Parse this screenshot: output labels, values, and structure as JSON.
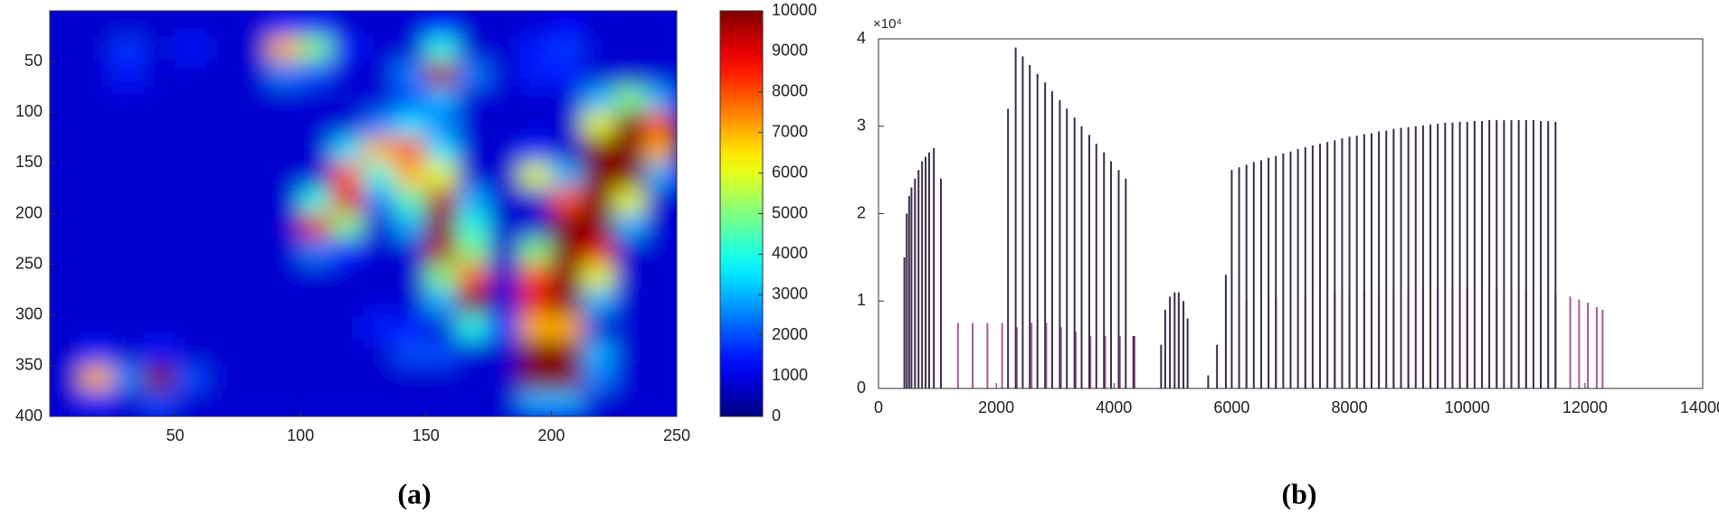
{
  "chart_data": [
    {
      "type": "heatmap",
      "label": "(a)",
      "colormap": "jet",
      "xlim": [
        0,
        250
      ],
      "ylim": [
        400,
        0
      ],
      "xticks": [
        50,
        100,
        150,
        200,
        250
      ],
      "yticks": [
        50,
        100,
        150,
        200,
        250,
        300,
        350,
        400
      ],
      "clim": [
        0,
        10000
      ],
      "cticks": [
        0,
        1000,
        2000,
        3000,
        4000,
        5000,
        6000,
        7000,
        8000,
        9000,
        10000
      ],
      "z": [
        [
          800,
          800,
          800,
          800,
          800,
          800,
          800,
          1500,
          1500,
          800,
          800,
          800,
          1500,
          800,
          800,
          800,
          1200,
          800,
          800,
          800
        ],
        [
          800,
          800,
          1800,
          800,
          1500,
          800,
          800,
          7000,
          5000,
          1500,
          800,
          800,
          4000,
          800,
          800,
          1500,
          1800,
          800,
          800,
          800
        ],
        [
          800,
          800,
          1500,
          800,
          800,
          800,
          800,
          2500,
          2000,
          800,
          800,
          2500,
          9500,
          2500,
          800,
          1500,
          1500,
          800,
          800,
          800
        ],
        [
          800,
          800,
          800,
          800,
          800,
          800,
          800,
          800,
          800,
          800,
          800,
          2000,
          3000,
          800,
          800,
          800,
          800,
          3000,
          5000,
          3000
        ],
        [
          800,
          800,
          800,
          800,
          800,
          800,
          800,
          800,
          800,
          800,
          2500,
          3500,
          2500,
          800,
          800,
          800,
          800,
          6000,
          10000,
          8000
        ],
        [
          800,
          800,
          800,
          800,
          800,
          800,
          800,
          800,
          800,
          3500,
          7000,
          8000,
          3500,
          800,
          800,
          1500,
          800,
          10000,
          10000,
          7000
        ],
        [
          800,
          800,
          800,
          800,
          800,
          800,
          800,
          800,
          800,
          8000,
          4000,
          7000,
          6000,
          800,
          800,
          6000,
          3000,
          10000,
          10000,
          3000
        ],
        [
          800,
          800,
          800,
          800,
          800,
          800,
          800,
          800,
          4000,
          9000,
          2500,
          4500,
          9500,
          3000,
          800,
          800,
          8000,
          10000,
          6000,
          800
        ],
        [
          800,
          800,
          800,
          800,
          800,
          800,
          800,
          800,
          9000,
          5000,
          800,
          3000,
          10000,
          4000,
          800,
          800,
          10000,
          10000,
          3000,
          800
        ],
        [
          800,
          800,
          800,
          800,
          800,
          800,
          800,
          800,
          2500,
          1500,
          800,
          800,
          9500,
          5000,
          800,
          5000,
          10000,
          9000,
          800,
          800
        ],
        [
          800,
          800,
          800,
          800,
          800,
          800,
          800,
          800,
          800,
          800,
          800,
          800,
          5000,
          8000,
          800,
          8000,
          10000,
          6000,
          800,
          800
        ],
        [
          800,
          800,
          800,
          800,
          800,
          800,
          800,
          800,
          800,
          800,
          800,
          800,
          3000,
          10000,
          800,
          9000,
          10000,
          3000,
          800,
          800
        ],
        [
          800,
          800,
          800,
          800,
          800,
          800,
          800,
          800,
          800,
          800,
          1500,
          1500,
          800,
          4000,
          1500,
          7000,
          7000,
          800,
          800,
          800
        ],
        [
          800,
          1500,
          800,
          1500,
          800,
          800,
          800,
          800,
          800,
          800,
          800,
          2000,
          2000,
          800,
          800,
          10000,
          10000,
          3000,
          800,
          800
        ],
        [
          800,
          7000,
          2500,
          10000,
          2000,
          800,
          800,
          800,
          800,
          800,
          800,
          800,
          800,
          800,
          800,
          10000,
          10000,
          2500,
          800,
          800
        ],
        [
          800,
          1500,
          800,
          2000,
          800,
          800,
          800,
          800,
          800,
          800,
          800,
          800,
          800,
          800,
          800,
          3000,
          3000,
          800,
          800,
          800
        ]
      ]
    },
    {
      "type": "stem",
      "label": "(b)",
      "y_exponent": "×10⁴",
      "xlim": [
        0,
        14000
      ],
      "ylim": [
        0,
        40000
      ],
      "xticks": [
        0,
        2000,
        4000,
        6000,
        8000,
        10000,
        12000,
        14000
      ],
      "yticks": [
        {
          "value": 0,
          "label": "0"
        },
        {
          "value": 10000,
          "label": "1"
        },
        {
          "value": 20000,
          "label": "2"
        },
        {
          "value": 30000,
          "label": "3"
        },
        {
          "value": 40000,
          "label": "4"
        }
      ],
      "series": [
        {
          "color": "#a45a9c",
          "x": [
            1350,
            1600,
            1850,
            2100,
            2350,
            2600,
            2850,
            3100,
            3350,
            3600,
            3850,
            4100,
            4350,
            6250,
            6500,
            6750,
            7000,
            7250,
            7500,
            7750,
            8000,
            8250,
            8500,
            8750,
            9000,
            9250,
            9500,
            9750,
            10000,
            10250,
            10500,
            10750,
            11000,
            11250,
            11500,
            11750,
            11900,
            12050,
            12200,
            12300
          ],
          "values": [
            7500,
            7500,
            7500,
            7500,
            7000,
            7500,
            7500,
            7000,
            6500,
            6000,
            6000,
            6000,
            6000,
            10000,
            10200,
            10400,
            10500,
            10700,
            10800,
            11000,
            11100,
            11200,
            11300,
            11400,
            11400,
            11500,
            11500,
            11500,
            11500,
            11500,
            11400,
            11300,
            11200,
            11000,
            10800,
            10500,
            10200,
            9800,
            9300,
            9000
          ]
        },
        {
          "color": "#3b2d4a",
          "x": [
            440,
            480,
            520,
            560,
            620,
            680,
            740,
            800,
            860,
            940,
            1060,
            2200,
            2330,
            2450,
            2570,
            2700,
            2830,
            2950,
            3080,
            3200,
            3330,
            3450,
            3580,
            3700,
            3830,
            3950,
            4080,
            4200,
            4330,
            4800,
            4870,
            4950,
            5030,
            5100,
            5180,
            5250,
            5600,
            5750,
            5900,
            6000,
            6125,
            6250,
            6375,
            6500,
            6625,
            6750,
            6875,
            7000,
            7125,
            7250,
            7375,
            7500,
            7625,
            7750,
            7875,
            8000,
            8125,
            8250,
            8375,
            8500,
            8625,
            8750,
            8875,
            9000,
            9125,
            9250,
            9375,
            9500,
            9625,
            9750,
            9875,
            10000,
            10125,
            10250,
            10375,
            10500,
            10625,
            10750,
            10875,
            11000,
            11125,
            11250,
            11375,
            11500
          ],
          "values": [
            15000,
            20000,
            22000,
            23000,
            24000,
            25000,
            26000,
            26500,
            27000,
            27500,
            24000,
            32000,
            39000,
            38000,
            37000,
            36000,
            35000,
            34000,
            33000,
            32000,
            31000,
            30000,
            29000,
            28000,
            27000,
            26000,
            25000,
            24000,
            6000,
            5000,
            9000,
            10500,
            11000,
            11000,
            10000,
            8000,
            1500,
            5000,
            13000,
            25000,
            25300,
            25600,
            25900,
            26100,
            26400,
            26600,
            26900,
            27100,
            27400,
            27600,
            27800,
            28000,
            28200,
            28400,
            28600,
            28800,
            28900,
            29100,
            29200,
            29400,
            29500,
            29700,
            29800,
            29900,
            30000,
            30100,
            30200,
            30300,
            30400,
            30400,
            30500,
            30500,
            30600,
            30600,
            30700,
            30700,
            30700,
            30700,
            30700,
            30700,
            30700,
            30600,
            30600,
            30500
          ]
        }
      ]
    }
  ]
}
